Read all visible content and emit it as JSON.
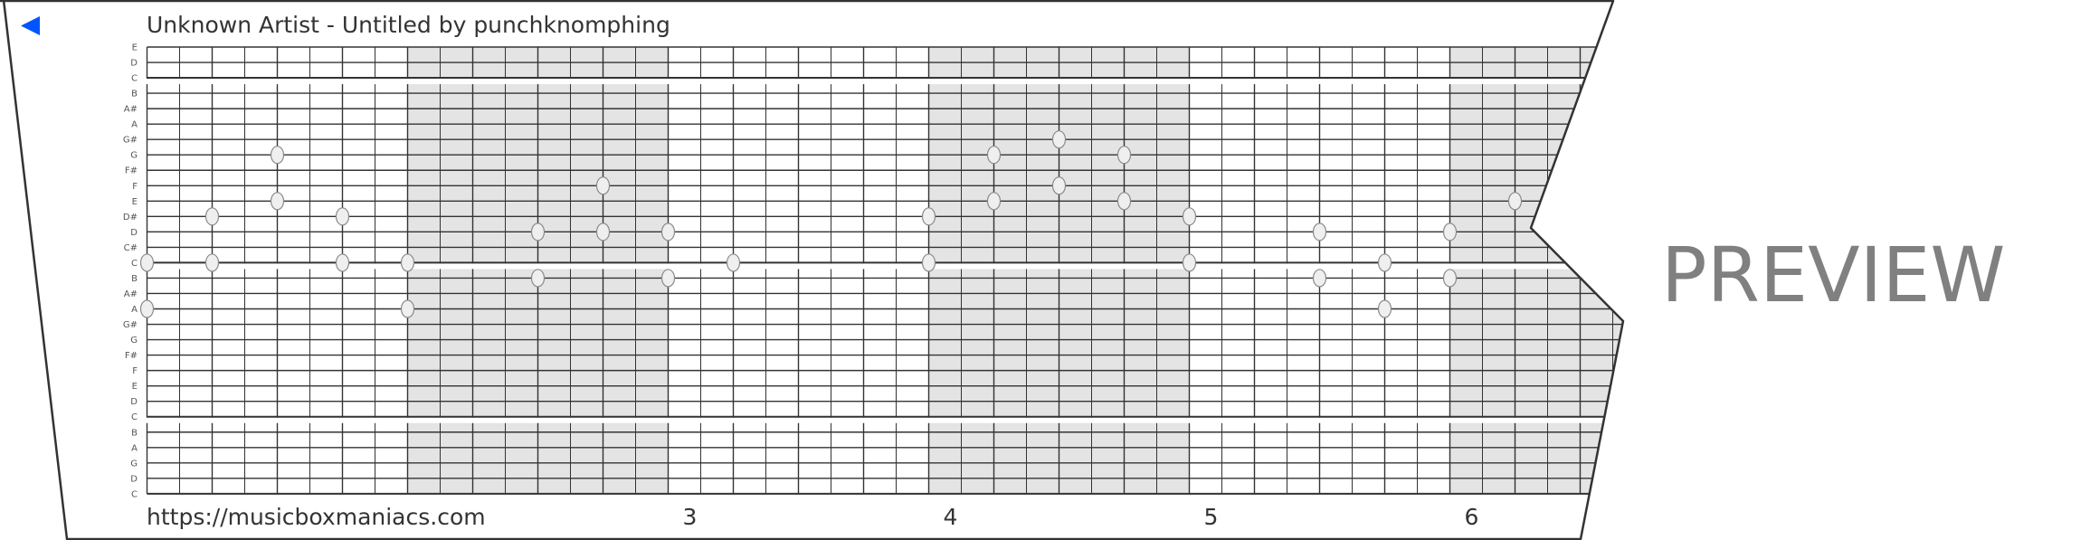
{
  "header": {
    "title": "Unknown Artist - Untitled by punchknomphing",
    "back_icon": "back-triangle-icon",
    "back_color": "#0055ff"
  },
  "footer": {
    "url": "https://musicboxmaniacs.com",
    "bar_numbers": [
      "3",
      "4",
      "5",
      "6"
    ]
  },
  "watermark": "PREVIEW",
  "colors": {
    "shade": "#e4e4e4",
    "grid_line": "#333333",
    "note_fill": "#efefef",
    "note_stroke": "#8a8a8a",
    "watermark": "#808080"
  },
  "strip": {
    "row_labels": [
      "E",
      "D",
      "C",
      "B",
      "A#",
      "A",
      "G#",
      "G",
      "F#",
      "F",
      "E",
      "D#",
      "D",
      "C#",
      "C",
      "B",
      "A#",
      "A",
      "G#",
      "G",
      "F#",
      "F",
      "E",
      "D",
      "C",
      "B",
      "A",
      "G",
      "D",
      "C"
    ],
    "steps_per_bar": 8,
    "notes": [
      {
        "step": 0,
        "pitch": 14
      },
      {
        "step": 0,
        "pitch": 17
      },
      {
        "step": 2,
        "pitch": 11
      },
      {
        "step": 2,
        "pitch": 14
      },
      {
        "step": 4,
        "pitch": 7
      },
      {
        "step": 4,
        "pitch": 10
      },
      {
        "step": 6,
        "pitch": 11
      },
      {
        "step": 6,
        "pitch": 14
      },
      {
        "step": 8,
        "pitch": 14
      },
      {
        "step": 8,
        "pitch": 17
      },
      {
        "step": 12,
        "pitch": 12
      },
      {
        "step": 12,
        "pitch": 15
      },
      {
        "step": 14,
        "pitch": 9
      },
      {
        "step": 14,
        "pitch": 12
      },
      {
        "step": 16,
        "pitch": 12
      },
      {
        "step": 16,
        "pitch": 15
      },
      {
        "step": 18,
        "pitch": 14
      },
      {
        "step": 24,
        "pitch": 11
      },
      {
        "step": 24,
        "pitch": 14
      },
      {
        "step": 26,
        "pitch": 7
      },
      {
        "step": 26,
        "pitch": 10
      },
      {
        "step": 28,
        "pitch": 6
      },
      {
        "step": 28,
        "pitch": 9
      },
      {
        "step": 30,
        "pitch": 7
      },
      {
        "step": 30,
        "pitch": 10
      },
      {
        "step": 32,
        "pitch": 11
      },
      {
        "step": 32,
        "pitch": 14
      },
      {
        "step": 36,
        "pitch": 12
      },
      {
        "step": 36,
        "pitch": 15
      },
      {
        "step": 38,
        "pitch": 14
      },
      {
        "step": 38,
        "pitch": 17
      },
      {
        "step": 40,
        "pitch": 12
      },
      {
        "step": 40,
        "pitch": 15
      },
      {
        "step": 42,
        "pitch": 10
      }
    ]
  }
}
